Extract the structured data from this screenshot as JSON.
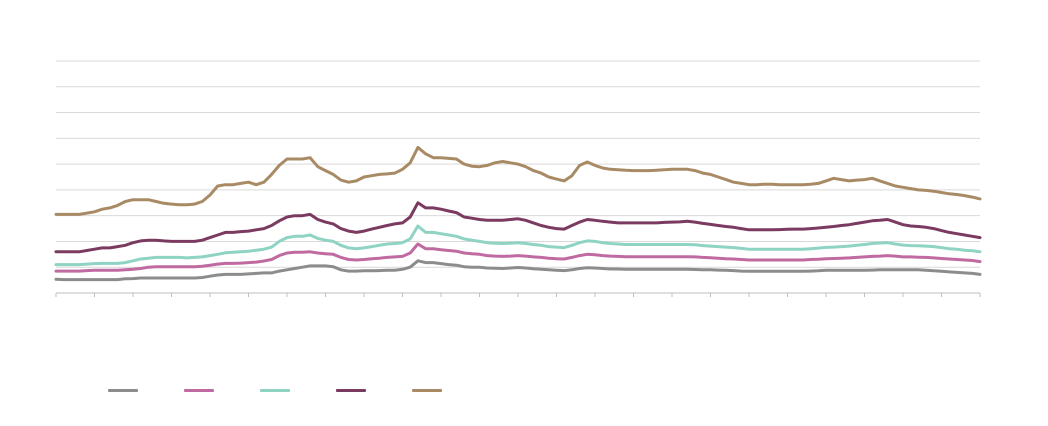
{
  "chart_data": {
    "type": "line",
    "title": "",
    "xlabel": "",
    "ylabel": "",
    "ylim": [
      0,
      9
    ],
    "grid": true,
    "grid_lines": 10,
    "x_ticks": 25,
    "legend_position": "bottom-left",
    "x": [
      0,
      1,
      2,
      3,
      4,
      5,
      6,
      7,
      8,
      9,
      10,
      11,
      12,
      13,
      14,
      15,
      16,
      17,
      18,
      19,
      20,
      21,
      22,
      23,
      24,
      25,
      26,
      27,
      28,
      29,
      30,
      31,
      32,
      33,
      34,
      35,
      36,
      37,
      38,
      39,
      40,
      41,
      42,
      43,
      44,
      45,
      46,
      47,
      48,
      49,
      50,
      51,
      52,
      53,
      54,
      55,
      56,
      57,
      58,
      59,
      60,
      61,
      62,
      63,
      64,
      65,
      66,
      67,
      68,
      69,
      70,
      71,
      72,
      73,
      74,
      75,
      76,
      77,
      78,
      79,
      80,
      81,
      82,
      83,
      84,
      85,
      86,
      87,
      88,
      89,
      90,
      91,
      92,
      93,
      94,
      95,
      96,
      97,
      98,
      99,
      100,
      101,
      102,
      103,
      104,
      105,
      106,
      107,
      108,
      109,
      110,
      111,
      112,
      113,
      114,
      115,
      116,
      117,
      118,
      119,
      120
    ],
    "series": [
      {
        "name": "",
        "color": "#8c8c8c",
        "values": [
          0.53,
          0.52,
          0.52,
          0.52,
          0.52,
          0.52,
          0.52,
          0.52,
          0.52,
          0.55,
          0.56,
          0.58,
          0.58,
          0.58,
          0.58,
          0.58,
          0.58,
          0.58,
          0.58,
          0.6,
          0.65,
          0.7,
          0.72,
          0.72,
          0.72,
          0.74,
          0.76,
          0.78,
          0.78,
          0.85,
          0.9,
          0.95,
          1.0,
          1.05,
          1.05,
          1.05,
          1.02,
          0.9,
          0.85,
          0.85,
          0.86,
          0.86,
          0.87,
          0.88,
          0.88,
          0.92,
          1.0,
          1.25,
          1.18,
          1.18,
          1.14,
          1.1,
          1.08,
          1.02,
          1.0,
          1.0,
          0.97,
          0.96,
          0.95,
          0.97,
          0.99,
          0.97,
          0.94,
          0.92,
          0.9,
          0.88,
          0.87,
          0.9,
          0.95,
          0.98,
          0.97,
          0.95,
          0.93,
          0.93,
          0.92,
          0.92,
          0.92,
          0.92,
          0.92,
          0.92,
          0.92,
          0.92,
          0.92,
          0.91,
          0.9,
          0.9,
          0.89,
          0.88,
          0.87,
          0.85,
          0.84,
          0.84,
          0.84,
          0.84,
          0.84,
          0.84,
          0.84,
          0.84,
          0.85,
          0.86,
          0.88,
          0.88,
          0.88,
          0.88,
          0.88,
          0.88,
          0.89,
          0.9,
          0.9,
          0.9,
          0.9,
          0.9,
          0.9,
          0.88,
          0.86,
          0.84,
          0.82,
          0.8,
          0.78,
          0.76,
          0.72
        ]
      },
      {
        "name": "",
        "color": "#c06aa2",
        "values": [
          0.85,
          0.85,
          0.85,
          0.85,
          0.87,
          0.88,
          0.88,
          0.88,
          0.88,
          0.9,
          0.92,
          0.95,
          1.0,
          1.02,
          1.02,
          1.02,
          1.02,
          1.02,
          1.02,
          1.04,
          1.08,
          1.12,
          1.15,
          1.15,
          1.16,
          1.18,
          1.2,
          1.24,
          1.3,
          1.45,
          1.55,
          1.58,
          1.58,
          1.6,
          1.55,
          1.52,
          1.5,
          1.38,
          1.3,
          1.28,
          1.3,
          1.33,
          1.35,
          1.38,
          1.4,
          1.42,
          1.55,
          1.9,
          1.72,
          1.72,
          1.68,
          1.65,
          1.62,
          1.55,
          1.52,
          1.5,
          1.45,
          1.43,
          1.42,
          1.43,
          1.45,
          1.43,
          1.4,
          1.38,
          1.35,
          1.33,
          1.32,
          1.38,
          1.45,
          1.5,
          1.48,
          1.45,
          1.43,
          1.42,
          1.41,
          1.41,
          1.41,
          1.41,
          1.41,
          1.41,
          1.41,
          1.41,
          1.41,
          1.4,
          1.38,
          1.37,
          1.35,
          1.33,
          1.32,
          1.3,
          1.28,
          1.28,
          1.28,
          1.28,
          1.28,
          1.28,
          1.28,
          1.28,
          1.3,
          1.31,
          1.33,
          1.34,
          1.35,
          1.36,
          1.38,
          1.4,
          1.42,
          1.43,
          1.45,
          1.43,
          1.4,
          1.4,
          1.39,
          1.38,
          1.36,
          1.34,
          1.32,
          1.3,
          1.28,
          1.26,
          1.22
        ]
      },
      {
        "name": "",
        "color": "#8ed3c3",
        "values": [
          1.1,
          1.1,
          1.1,
          1.1,
          1.12,
          1.14,
          1.15,
          1.15,
          1.15,
          1.18,
          1.25,
          1.32,
          1.35,
          1.38,
          1.38,
          1.38,
          1.38,
          1.36,
          1.38,
          1.4,
          1.45,
          1.5,
          1.56,
          1.58,
          1.6,
          1.62,
          1.66,
          1.7,
          1.78,
          2.0,
          2.15,
          2.2,
          2.2,
          2.25,
          2.12,
          2.05,
          2.0,
          1.85,
          1.75,
          1.72,
          1.75,
          1.8,
          1.85,
          1.9,
          1.92,
          1.95,
          2.1,
          2.6,
          2.35,
          2.35,
          2.3,
          2.25,
          2.2,
          2.1,
          2.05,
          2.0,
          1.95,
          1.93,
          1.92,
          1.93,
          1.95,
          1.92,
          1.88,
          1.85,
          1.8,
          1.78,
          1.76,
          1.85,
          1.95,
          2.02,
          2.0,
          1.95,
          1.92,
          1.9,
          1.88,
          1.88,
          1.88,
          1.88,
          1.88,
          1.88,
          1.88,
          1.88,
          1.88,
          1.87,
          1.84,
          1.82,
          1.8,
          1.78,
          1.76,
          1.73,
          1.7,
          1.7,
          1.7,
          1.7,
          1.7,
          1.7,
          1.7,
          1.7,
          1.72,
          1.74,
          1.77,
          1.78,
          1.8,
          1.82,
          1.85,
          1.88,
          1.92,
          1.94,
          1.95,
          1.9,
          1.86,
          1.84,
          1.83,
          1.82,
          1.8,
          1.76,
          1.72,
          1.7,
          1.66,
          1.64,
          1.6
        ]
      },
      {
        "name": "",
        "color": "#7b3a60",
        "values": [
          1.6,
          1.6,
          1.6,
          1.6,
          1.65,
          1.7,
          1.75,
          1.75,
          1.8,
          1.85,
          1.95,
          2.02,
          2.05,
          2.05,
          2.02,
          2.0,
          2.0,
          2.0,
          2.0,
          2.05,
          2.15,
          2.25,
          2.35,
          2.35,
          2.38,
          2.4,
          2.45,
          2.5,
          2.62,
          2.8,
          2.95,
          3.0,
          3.0,
          3.05,
          2.85,
          2.75,
          2.68,
          2.5,
          2.4,
          2.35,
          2.4,
          2.48,
          2.55,
          2.62,
          2.68,
          2.72,
          2.95,
          3.5,
          3.3,
          3.3,
          3.25,
          3.18,
          3.12,
          2.95,
          2.9,
          2.85,
          2.82,
          2.82,
          2.82,
          2.85,
          2.88,
          2.82,
          2.72,
          2.62,
          2.55,
          2.5,
          2.48,
          2.62,
          2.75,
          2.85,
          2.82,
          2.78,
          2.75,
          2.72,
          2.72,
          2.72,
          2.72,
          2.72,
          2.72,
          2.74,
          2.75,
          2.76,
          2.78,
          2.75,
          2.7,
          2.66,
          2.62,
          2.58,
          2.55,
          2.5,
          2.45,
          2.45,
          2.45,
          2.45,
          2.46,
          2.47,
          2.48,
          2.48,
          2.5,
          2.52,
          2.55,
          2.58,
          2.62,
          2.65,
          2.7,
          2.75,
          2.8,
          2.82,
          2.85,
          2.75,
          2.65,
          2.6,
          2.58,
          2.55,
          2.5,
          2.42,
          2.35,
          2.3,
          2.25,
          2.2,
          2.15
        ]
      },
      {
        "name": "",
        "color": "#a88b65",
        "values": [
          3.05,
          3.05,
          3.05,
          3.05,
          3.1,
          3.15,
          3.25,
          3.3,
          3.4,
          3.55,
          3.62,
          3.62,
          3.62,
          3.55,
          3.48,
          3.45,
          3.42,
          3.42,
          3.45,
          3.55,
          3.8,
          4.15,
          4.2,
          4.2,
          4.25,
          4.3,
          4.2,
          4.3,
          4.6,
          4.95,
          5.2,
          5.2,
          5.2,
          5.25,
          4.9,
          4.75,
          4.6,
          4.38,
          4.3,
          4.35,
          4.5,
          4.55,
          4.6,
          4.62,
          4.65,
          4.8,
          5.05,
          5.65,
          5.4,
          5.25,
          5.25,
          5.22,
          5.2,
          5.0,
          4.92,
          4.9,
          4.95,
          5.05,
          5.1,
          5.05,
          5.0,
          4.9,
          4.75,
          4.65,
          4.5,
          4.42,
          4.35,
          4.55,
          4.95,
          5.08,
          4.95,
          4.85,
          4.8,
          4.78,
          4.76,
          4.75,
          4.75,
          4.75,
          4.76,
          4.78,
          4.8,
          4.8,
          4.8,
          4.75,
          4.65,
          4.6,
          4.5,
          4.4,
          4.3,
          4.25,
          4.2,
          4.2,
          4.22,
          4.22,
          4.2,
          4.2,
          4.2,
          4.2,
          4.22,
          4.25,
          4.35,
          4.45,
          4.4,
          4.35,
          4.38,
          4.4,
          4.45,
          4.35,
          4.25,
          4.15,
          4.1,
          4.05,
          4.0,
          3.98,
          3.95,
          3.9,
          3.85,
          3.82,
          3.78,
          3.72,
          3.65
        ]
      }
    ]
  }
}
